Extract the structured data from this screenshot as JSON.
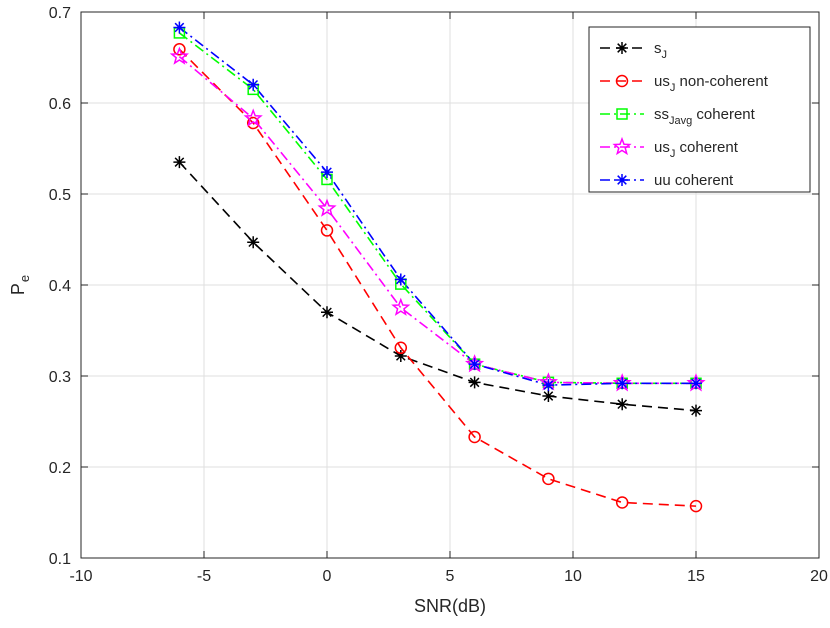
{
  "chart_data": {
    "type": "line",
    "title": "",
    "xlabel": "SNR(dB)",
    "ylabel": {
      "base": "P",
      "sub": "e"
    },
    "xlim": [
      -10,
      20
    ],
    "ylim": [
      0.1,
      0.7
    ],
    "xticks": [
      -10,
      -5,
      0,
      5,
      10,
      15,
      20
    ],
    "yticks": [
      0.1,
      0.2,
      0.3,
      0.4,
      0.5,
      0.6,
      0.7
    ],
    "xtick_labels": [
      "-10",
      "-5",
      "0",
      "5",
      "10",
      "15",
      "20"
    ],
    "ytick_labels": [
      "0.1",
      "0.2",
      "0.3",
      "0.4",
      "0.5",
      "0.6",
      "0.7"
    ],
    "grid": true,
    "legend_position": "top-right",
    "x": [
      -6,
      -3,
      0,
      3,
      6,
      9,
      12,
      15
    ],
    "series": [
      {
        "name": "s_J",
        "legend": {
          "base": "s",
          "sub": "J",
          "suffix": ""
        },
        "color": "#000000",
        "dash": "10,6",
        "marker": "asterisk",
        "values": [
          0.535,
          0.447,
          0.37,
          0.322,
          0.293,
          0.278,
          0.269,
          0.262
        ]
      },
      {
        "name": "us_J non-coherent",
        "legend": {
          "base": "us",
          "sub": "J",
          "suffix": " non-coherent"
        },
        "color": "#ff0000",
        "dash": "10,6",
        "marker": "circle",
        "values": [
          0.659,
          0.578,
          0.46,
          0.331,
          0.233,
          0.187,
          0.161,
          0.157
        ]
      },
      {
        "name": "ss_Javg coherent",
        "legend": {
          "base": "ss",
          "sub": "Javg",
          "suffix": " coherent"
        },
        "color": "#00ff00",
        "dash": "10,4,2,4",
        "marker": "square",
        "values": [
          0.677,
          0.615,
          0.516,
          0.401,
          0.313,
          0.293,
          0.292,
          0.292
        ]
      },
      {
        "name": "us_J coherent",
        "legend": {
          "base": "us",
          "sub": "J",
          "suffix": " coherent"
        },
        "color": "#ff00ff",
        "dash": "10,4,2,4",
        "marker": "pentagram",
        "values": [
          0.651,
          0.583,
          0.484,
          0.375,
          0.313,
          0.293,
          0.292,
          0.292
        ]
      },
      {
        "name": "uu coherent",
        "legend": {
          "base": "uu coherent",
          "sub": "",
          "suffix": ""
        },
        "color": "#0000ff",
        "dash": "10,4,2,4",
        "marker": "asterisk",
        "values": [
          0.683,
          0.62,
          0.524,
          0.406,
          0.313,
          0.29,
          0.292,
          0.292
        ]
      }
    ]
  }
}
